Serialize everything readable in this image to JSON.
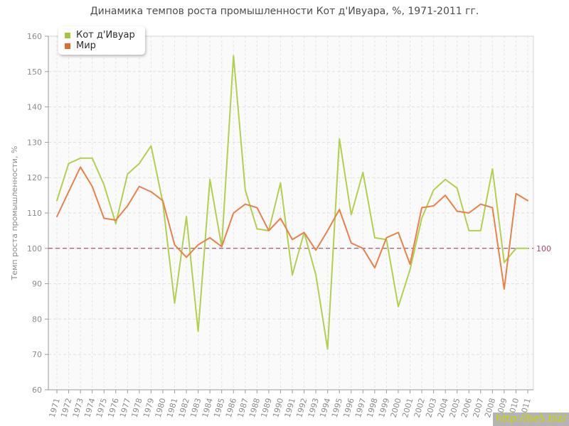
{
  "title": "Динамика темпов роста промышленности Кот д'Ивуара, %, 1971-2011 гг.",
  "y_axis_title": "Темп роста промышленности, %",
  "watermark": "http://be5.biz/",
  "reference_line": {
    "value": 100,
    "label": "100",
    "color": "#8e3352",
    "label_color": "#a84a66"
  },
  "legend": [
    {
      "label": "Кот д'Ивуар",
      "color": "#a2c73a"
    },
    {
      "label": "Мир",
      "color": "#dd6e2e"
    }
  ],
  "chart_data": {
    "type": "line",
    "title": "Динамика темпов роста промышленности Кот д'Ивуара, %, 1971-2011 гг.",
    "xlabel": "",
    "ylabel": "Темп роста промышленности, %",
    "ylim": [
      60,
      160
    ],
    "ytick_step": 10,
    "grid": true,
    "legend_position": "top-left",
    "x": [
      "1971",
      "1972",
      "1973",
      "1974",
      "1975",
      "1976",
      "1977",
      "1978",
      "1979",
      "1980",
      "1981",
      "1982",
      "1983",
      "1984",
      "1985",
      "1986",
      "1987",
      "1988",
      "1989",
      "1990",
      "1991",
      "1992",
      "1993",
      "1994",
      "1995",
      "1996",
      "1997",
      "1998",
      "1999",
      "2000",
      "2001",
      "2002",
      "2003",
      "2004",
      "2005",
      "2006",
      "2007",
      "2008",
      "2009",
      "2010",
      "2011"
    ],
    "series": [
      {
        "name": "Кот д'Ивуар",
        "id": "cote-divoire",
        "color": "#b2cf4d",
        "values": [
          113.5,
          124,
          125.5,
          125.5,
          118,
          107,
          121,
          124,
          129,
          113,
          84.5,
          109,
          76.5,
          119.5,
          100.5,
          154.5,
          116.5,
          105.5,
          105,
          118.5,
          92.5,
          104.5,
          92.5,
          71.5,
          131,
          109.5,
          121.5,
          103,
          102.5,
          83.5,
          94,
          108.5,
          116.5,
          119.5,
          117,
          105,
          105,
          122.5,
          96,
          100,
          100
        ]
      },
      {
        "name": "Мир",
        "id": "mir",
        "color": "#e8814b",
        "values": [
          109,
          116,
          123,
          117.5,
          108.5,
          108,
          112,
          117.5,
          116,
          113.5,
          101,
          97.5,
          101,
          103,
          100.5,
          110,
          112.5,
          111.5,
          105,
          108.5,
          102.5,
          104.5,
          99.5,
          105,
          111,
          101.5,
          100,
          94.5,
          103,
          104.5,
          95.5,
          111.5,
          112,
          115,
          110.5,
          110,
          112.5,
          111.5,
          88.5,
          115.5,
          113.5
        ]
      }
    ]
  }
}
